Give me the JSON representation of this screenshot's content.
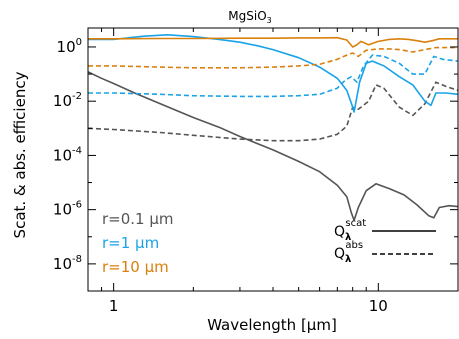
{
  "chart_data": {
    "type": "line",
    "title": "MgSiO3",
    "title_main": "MgSiO",
    "title_sub": "3",
    "xlabel": "Wavelength [μm]",
    "ylabel": "Scat. & abs. efficiency",
    "xscale": "log",
    "yscale": "log",
    "xlim": [
      0.8,
      20
    ],
    "ylim": [
      1e-09,
      5
    ],
    "x_ticks": [
      {
        "value": 1,
        "label": "1"
      },
      {
        "value": 10,
        "label": "10"
      }
    ],
    "y_ticks": [
      {
        "value": 1,
        "label": "10",
        "exp": "0"
      },
      {
        "value": 0.01,
        "label": "10",
        "exp": "-2"
      },
      {
        "value": 0.0001,
        "label": "10",
        "exp": "-4"
      },
      {
        "value": 1e-06,
        "label": "10",
        "exp": "-6"
      },
      {
        "value": 1e-08,
        "label": "10",
        "exp": "-8"
      }
    ],
    "legend_sizes": [
      {
        "label": "r=0.1 μm",
        "color": "#555555"
      },
      {
        "label": "r=1 μm",
        "color": "#1aa3e8"
      },
      {
        "label": "r=10 μm",
        "color": "#d9800f"
      }
    ],
    "legend_kind": [
      {
        "label": "Q",
        "sub": "λ",
        "sup": "scat",
        "style": "solid"
      },
      {
        "label": "Q",
        "sub": "λ",
        "sup": "abs",
        "style": "dashed"
      }
    ],
    "series": [
      {
        "radius": "0.1",
        "kind": "scat",
        "color": "#555555",
        "style": "solid",
        "points": [
          [
            0.8,
            0.12
          ],
          [
            0.9,
            0.07
          ],
          [
            1.0,
            0.045
          ],
          [
            1.2,
            0.02
          ],
          [
            1.5,
            0.008
          ],
          [
            2,
            0.0025
          ],
          [
            2.5,
            0.0011
          ],
          [
            3,
            0.0005
          ],
          [
            4,
            0.00016
          ],
          [
            5,
            6e-05
          ],
          [
            6,
            2.5e-05
          ],
          [
            7,
            8e-06
          ],
          [
            7.6,
            3e-06
          ],
          [
            7.9,
            8e-07
          ],
          [
            8.1,
            4e-07
          ],
          [
            8.4,
            1.2e-06
          ],
          [
            9,
            5e-06
          ],
          [
            9.8,
            9e-06
          ],
          [
            11,
            6e-06
          ],
          [
            12.5,
            3.5e-06
          ],
          [
            14,
            1.5e-06
          ],
          [
            15.5,
            6e-07
          ],
          [
            16.2,
            5e-07
          ],
          [
            17,
            1.2e-06
          ],
          [
            18.5,
            1.4e-06
          ],
          [
            20,
            1.3e-06
          ]
        ]
      },
      {
        "radius": "0.1",
        "kind": "abs",
        "color": "#555555",
        "style": "dashed",
        "points": [
          [
            0.8,
            0.001
          ],
          [
            1.0,
            0.0009
          ],
          [
            1.5,
            0.0007
          ],
          [
            2,
            0.00055
          ],
          [
            3,
            0.0004
          ],
          [
            4,
            0.00035
          ],
          [
            5,
            0.00035
          ],
          [
            6,
            0.0004
          ],
          [
            7,
            0.0006
          ],
          [
            7.6,
            0.0012
          ],
          [
            8.0,
            0.006
          ],
          [
            8.4,
            0.005
          ],
          [
            9.2,
            0.01
          ],
          [
            9.8,
            0.04
          ],
          [
            10.5,
            0.03
          ],
          [
            12,
            0.006
          ],
          [
            13.5,
            0.003
          ],
          [
            15,
            0.008
          ],
          [
            16.5,
            0.05
          ],
          [
            18,
            0.035
          ],
          [
            20,
            0.025
          ]
        ]
      },
      {
        "radius": "1",
        "kind": "scat",
        "color": "#1aa3e8",
        "style": "solid",
        "points": [
          [
            0.8,
            1.9
          ],
          [
            1.0,
            1.9
          ],
          [
            1.3,
            2.5
          ],
          [
            1.6,
            2.8
          ],
          [
            2,
            2.4
          ],
          [
            2.5,
            1.9
          ],
          [
            3,
            1.5
          ],
          [
            3.5,
            1.1
          ],
          [
            4,
            0.8
          ],
          [
            5,
            0.4
          ],
          [
            6,
            0.18
          ],
          [
            7,
            0.07
          ],
          [
            7.6,
            0.025
          ],
          [
            8.0,
            0.006
          ],
          [
            8.1,
            0.004
          ],
          [
            8.5,
            0.05
          ],
          [
            9.0,
            0.25
          ],
          [
            9.5,
            0.3
          ],
          [
            10.5,
            0.2
          ],
          [
            12,
            0.08
          ],
          [
            13.5,
            0.04
          ],
          [
            15,
            0.01
          ],
          [
            15.8,
            0.007
          ],
          [
            16.5,
            0.02
          ],
          [
            18,
            0.02
          ],
          [
            20,
            0.018
          ]
        ]
      },
      {
        "radius": "1",
        "kind": "abs",
        "color": "#1aa3e8",
        "style": "dashed",
        "points": [
          [
            0.8,
            0.02
          ],
          [
            1.0,
            0.02
          ],
          [
            1.5,
            0.018
          ],
          [
            2,
            0.016
          ],
          [
            3,
            0.015
          ],
          [
            4,
            0.015
          ],
          [
            5,
            0.016
          ],
          [
            6,
            0.018
          ],
          [
            7,
            0.03
          ],
          [
            7.5,
            0.06
          ],
          [
            7.9,
            0.08
          ],
          [
            8.3,
            0.05
          ],
          [
            8.8,
            0.2
          ],
          [
            9.5,
            0.5
          ],
          [
            10.5,
            0.45
          ],
          [
            12,
            0.25
          ],
          [
            13.5,
            0.1
          ],
          [
            15,
            0.1
          ],
          [
            16.2,
            0.45
          ],
          [
            17.5,
            0.35
          ],
          [
            20,
            0.3
          ]
        ]
      },
      {
        "radius": "10",
        "kind": "scat",
        "color": "#d9800f",
        "style": "solid",
        "points": [
          [
            0.8,
            2.0
          ],
          [
            1.0,
            2.0
          ],
          [
            1.5,
            2.05
          ],
          [
            2,
            2.05
          ],
          [
            3,
            2.1
          ],
          [
            4,
            2.1
          ],
          [
            5,
            2.15
          ],
          [
            6,
            2.15
          ],
          [
            7,
            2.2
          ],
          [
            7.6,
            1.8
          ],
          [
            8.0,
            1.0
          ],
          [
            8.3,
            1.2
          ],
          [
            8.6,
            1.6
          ],
          [
            9.2,
            1.2
          ],
          [
            10,
            1.6
          ],
          [
            11,
            1.9
          ],
          [
            12,
            2.0
          ],
          [
            13,
            1.9
          ],
          [
            14,
            1.7
          ],
          [
            15,
            1.5
          ],
          [
            16,
            1.7
          ],
          [
            17,
            2.0
          ],
          [
            20,
            2.0
          ]
        ]
      },
      {
        "radius": "10",
        "kind": "abs",
        "color": "#d9800f",
        "style": "dashed",
        "points": [
          [
            0.8,
            0.2
          ],
          [
            1.0,
            0.2
          ],
          [
            1.5,
            0.18
          ],
          [
            2,
            0.17
          ],
          [
            3,
            0.17
          ],
          [
            4,
            0.18
          ],
          [
            5,
            0.2
          ],
          [
            6,
            0.23
          ],
          [
            7,
            0.35
          ],
          [
            7.6,
            0.5
          ],
          [
            8.0,
            0.6
          ],
          [
            8.4,
            0.45
          ],
          [
            9.0,
            0.75
          ],
          [
            10,
            0.85
          ],
          [
            11,
            0.85
          ],
          [
            12,
            0.8
          ],
          [
            13.5,
            0.65
          ],
          [
            15,
            0.8
          ],
          [
            16.5,
            0.95
          ],
          [
            20,
            0.95
          ]
        ]
      }
    ]
  }
}
